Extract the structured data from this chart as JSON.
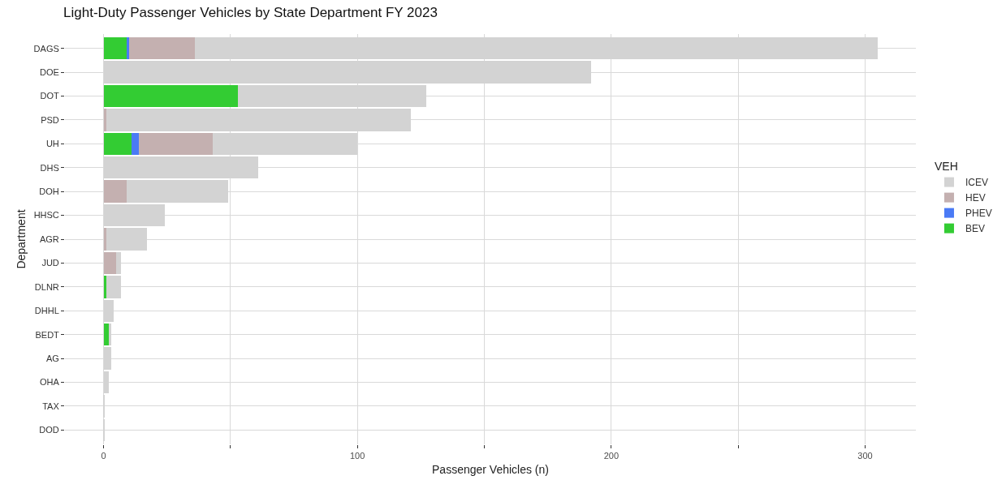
{
  "chart_data": {
    "type": "bar",
    "orientation": "horizontal",
    "stacked": true,
    "title": "Light-Duty Passenger Vehicles by State Department FY 2023",
    "xlabel": "Passenger Vehicles (n)",
    "ylabel": "Department",
    "legend_title": "VEH",
    "legend": "right",
    "grid": true,
    "categories": [
      "DAGS",
      "DOE",
      "DOT",
      "PSD",
      "UH",
      "DHS",
      "DOH",
      "HHSC",
      "AGR",
      "JUD",
      "DLNR",
      "DHHL",
      "BEDT",
      "AG",
      "OHA",
      "TAX",
      "DOD"
    ],
    "xlim": [
      -15.2,
      320
    ],
    "xticks": [
      0,
      {
        "value": 50,
        "label": null
      },
      100,
      {
        "value": 150,
        "label": null
      },
      200,
      {
        "value": 250,
        "label": null
      },
      300
    ],
    "series": [
      {
        "name": "BEV",
        "color": "#33cc33",
        "values": [
          9,
          null,
          53,
          null,
          11,
          null,
          null,
          null,
          null,
          null,
          1,
          null,
          2,
          null,
          null,
          null,
          null
        ]
      },
      {
        "name": "PHEV",
        "color": "#4a7af5",
        "values": [
          1,
          null,
          null,
          null,
          3,
          null,
          null,
          null,
          null,
          null,
          null,
          null,
          null,
          null,
          null,
          null,
          null
        ]
      },
      {
        "name": "HEV",
        "color": "#c4b0b0",
        "values": [
          26,
          null,
          null,
          1,
          29,
          null,
          9,
          null,
          1,
          5,
          null,
          null,
          null,
          null,
          null,
          null,
          null
        ]
      },
      {
        "name": "ICEV",
        "color": "#d3d3d3",
        "values": [
          269,
          192,
          74,
          120,
          57,
          61,
          40,
          24,
          16,
          2,
          6,
          4,
          1,
          3,
          2,
          0.5,
          0.3
        ]
      }
    ]
  }
}
